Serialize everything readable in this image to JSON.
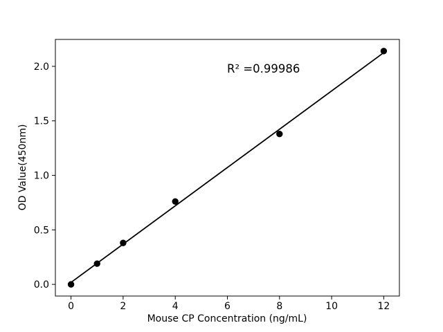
{
  "figure": {
    "background": "#ffffff"
  },
  "chart_data": {
    "type": "scatter",
    "title": "",
    "xlabel": "Mouse CP Concentration (ng/mL)",
    "ylabel": "OD Value(450nm)",
    "x": [
      0,
      1,
      2,
      4,
      8,
      12
    ],
    "y": [
      0.0,
      0.19,
      0.38,
      0.76,
      1.38,
      2.14
    ],
    "fit_line": {
      "x": [
        0,
        12
      ],
      "y": [
        0.018,
        2.126
      ]
    },
    "annotation": {
      "text": "R² =0.99986",
      "x": 6.0,
      "y": 1.94
    },
    "r_squared": 0.99986,
    "xticks": [
      0,
      2,
      4,
      6,
      8,
      10,
      12
    ],
    "xtick_labels": [
      "0",
      "2",
      "4",
      "6",
      "8",
      "10",
      "12"
    ],
    "yticks": [
      0.0,
      0.5,
      1.0,
      1.5,
      2.0
    ],
    "ytick_labels": [
      "0.0",
      "0.5",
      "1.0",
      "1.5",
      "2.0"
    ],
    "xlim": [
      -0.6,
      12.6
    ],
    "ylim": [
      -0.107,
      2.247
    ],
    "grid": false,
    "legend": "none",
    "marker_color": "#000000",
    "line_color": "#000000",
    "axis_color": "#000000",
    "text_color": "#000000"
  }
}
